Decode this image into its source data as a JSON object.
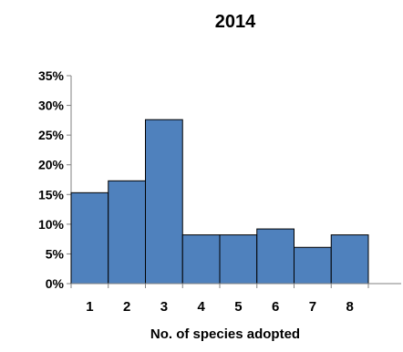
{
  "chart_data": {
    "type": "bar",
    "title": "2014",
    "xlabel": "No. of species adopted",
    "ylabel": "",
    "categories": [
      "1",
      "2",
      "3",
      "4",
      "5",
      "6",
      "7",
      "8"
    ],
    "values": [
      15.3,
      17.3,
      27.6,
      8.2,
      8.2,
      9.2,
      6.1,
      8.2
    ],
    "ylim": [
      0,
      35
    ],
    "yticks": [
      0,
      5,
      10,
      15,
      20,
      25,
      30,
      35
    ],
    "ytick_labels": [
      "0%",
      "5%",
      "10%",
      "15%",
      "20%",
      "25%",
      "30%",
      "35%"
    ],
    "grid": false,
    "legend": "none",
    "colors": {
      "bar_fill": "#4F81BD",
      "bar_stroke": "#000000",
      "axis": "#808080"
    }
  }
}
